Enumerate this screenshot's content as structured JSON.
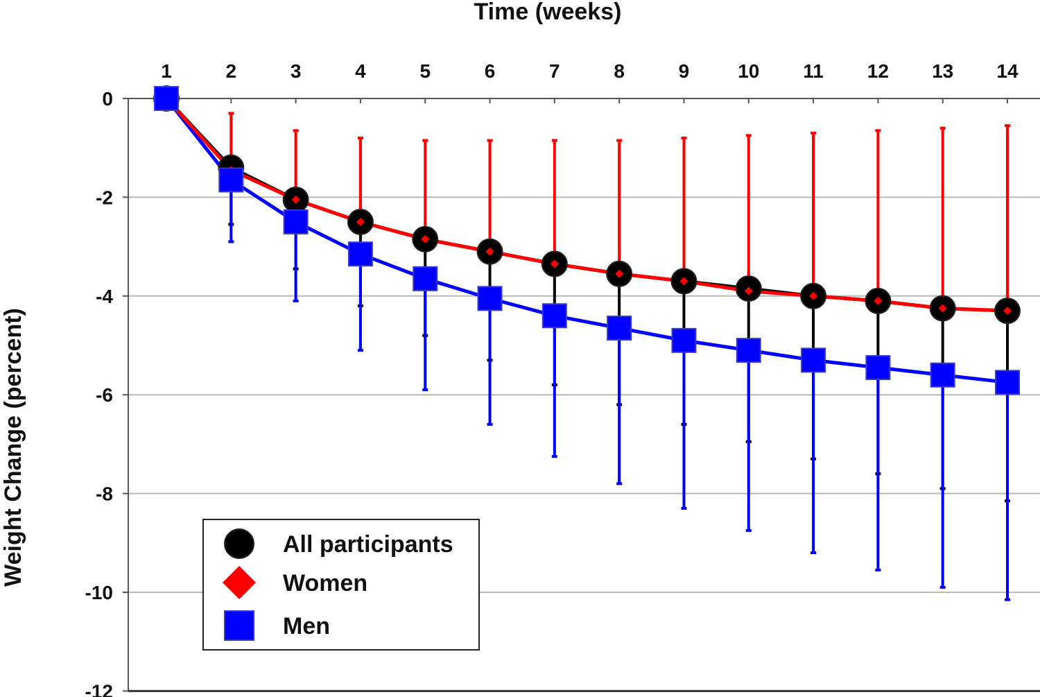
{
  "chart_data": {
    "type": "line",
    "title": "Time (weeks)",
    "xlabel": "Time (weeks)",
    "ylabel": "Weight Change (percent)",
    "x": [
      1,
      2,
      3,
      4,
      5,
      6,
      7,
      8,
      9,
      10,
      11,
      12,
      13,
      14
    ],
    "xlim": [
      1,
      14
    ],
    "ylim": [
      -12,
      0
    ],
    "yticks": [
      0,
      -2,
      -4,
      -6,
      -8,
      -10,
      -12
    ],
    "x_axis_position": "top",
    "grid": "horizontal",
    "legend_position": "bottom-left",
    "series": [
      {
        "name": "All participants",
        "color": "#000000",
        "marker": "circle",
        "values": [
          0,
          -1.4,
          -2.05,
          -2.5,
          -2.85,
          -3.1,
          -3.35,
          -3.55,
          -3.7,
          -3.85,
          -4.0,
          -4.1,
          -4.25,
          -4.3
        ],
        "error_low": [
          0,
          -2.55,
          -3.45,
          -4.2,
          -4.8,
          -5.3,
          -5.8,
          -6.2,
          -6.6,
          -6.95,
          -7.3,
          -7.6,
          -7.9,
          -8.15
        ],
        "error_high": null
      },
      {
        "name": "Women",
        "color": "#ff0000",
        "marker": "diamond",
        "values": [
          0,
          -1.45,
          -2.05,
          -2.5,
          -2.85,
          -3.1,
          -3.35,
          -3.55,
          -3.7,
          -3.9,
          -4.0,
          -4.1,
          -4.25,
          -4.3
        ],
        "error_low": null,
        "error_high": [
          0,
          -0.3,
          -0.65,
          -0.8,
          -0.85,
          -0.85,
          -0.85,
          -0.85,
          -0.8,
          -0.75,
          -0.7,
          -0.65,
          -0.6,
          -0.55
        ]
      },
      {
        "name": "Men",
        "color": "#0000ff",
        "marker": "square",
        "values": [
          0,
          -1.65,
          -2.5,
          -3.15,
          -3.65,
          -4.05,
          -4.4,
          -4.65,
          -4.9,
          -5.1,
          -5.3,
          -5.45,
          -5.6,
          -5.75
        ],
        "error_low": [
          0,
          -2.9,
          -4.1,
          -5.1,
          -5.9,
          -6.6,
          -7.25,
          -7.8,
          -8.3,
          -8.75,
          -9.2,
          -9.55,
          -9.9,
          -10.15
        ],
        "error_high": null
      }
    ]
  }
}
